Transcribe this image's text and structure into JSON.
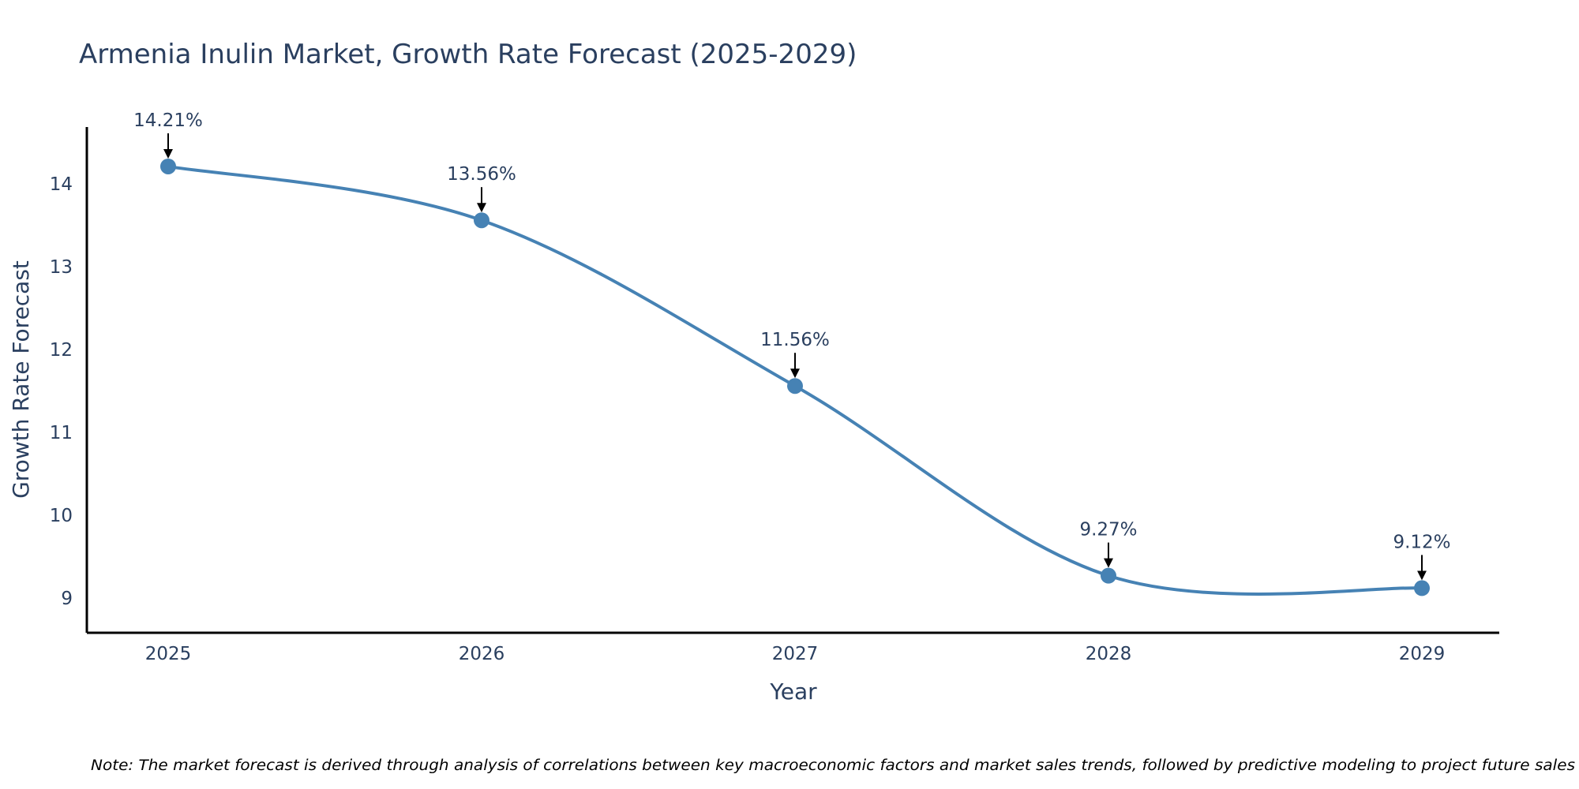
{
  "chart_data": {
    "type": "line",
    "title": "Armenia Inulin Market, Growth Rate Forecast (2025-2029)",
    "xlabel": "Year",
    "ylabel": "Growth Rate Forecast",
    "categories": [
      "2025",
      "2026",
      "2027",
      "2028",
      "2029"
    ],
    "series": [
      {
        "name": "Growth Rate Forecast",
        "values": [
          14.21,
          13.56,
          11.56,
          9.27,
          9.12
        ],
        "labels": [
          "14.21%",
          "13.56%",
          "11.56%",
          "9.27%",
          "9.12%"
        ]
      }
    ],
    "yticks": [
      "9",
      "10",
      "11",
      "12",
      "13",
      "14"
    ],
    "ylim": [
      8.6,
      14.7
    ],
    "line_shape": "spline",
    "grid": false,
    "color": "#4682b4",
    "note": "Note: The market forecast is derived through analysis of correlations between key macroeconomic factors and market sales trends, followed by predictive modeling to project future sales"
  }
}
